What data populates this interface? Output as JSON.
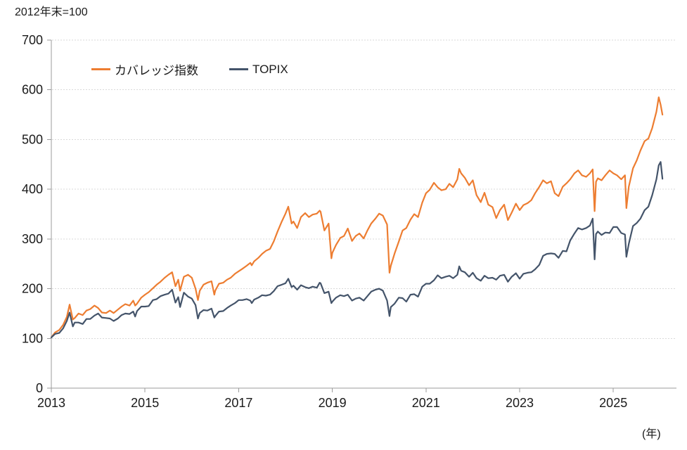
{
  "note": "2012年末=100",
  "unit_label": "(年)",
  "colors": {
    "coverage_index_line": "#ED7D31",
    "topix_line": "#44546A",
    "gridline": "#D9D9D9",
    "axis": "#9B9B9B",
    "label_text": "#1A1A1A"
  },
  "chart_data": {
    "type": "line",
    "title": "2012年末=100",
    "xlabel": "(年)",
    "ylabel": "",
    "ylim": [
      0,
      700
    ],
    "xlim": [
      2013,
      2026.3
    ],
    "grid": true,
    "legend_position": "top-inside",
    "y_ticks": [
      0,
      100,
      200,
      300,
      400,
      500,
      600,
      700
    ],
    "x_ticks": [
      2013,
      2015,
      2017,
      2019,
      2021,
      2023,
      2025
    ],
    "grid_color": "#D9D9D9",
    "axis_color": "#9B9B9B",
    "label_color": "#1A1A1A",
    "x": [
      2013.0,
      2013.08,
      2013.17,
      2013.25,
      2013.33,
      2013.39,
      2013.46,
      2013.5,
      2013.58,
      2013.67,
      2013.75,
      2013.83,
      2013.92,
      2014.0,
      2014.08,
      2014.17,
      2014.25,
      2014.33,
      2014.42,
      2014.5,
      2014.58,
      2014.67,
      2014.75,
      2014.79,
      2014.83,
      2014.92,
      2015.0,
      2015.08,
      2015.17,
      2015.25,
      2015.33,
      2015.42,
      2015.5,
      2015.58,
      2015.65,
      2015.71,
      2015.75,
      2015.83,
      2015.92,
      2016.0,
      2016.08,
      2016.13,
      2016.17,
      2016.25,
      2016.33,
      2016.42,
      2016.48,
      2016.5,
      2016.58,
      2016.67,
      2016.75,
      2016.83,
      2016.92,
      2017.0,
      2017.08,
      2017.17,
      2017.25,
      2017.28,
      2017.33,
      2017.42,
      2017.5,
      2017.58,
      2017.67,
      2017.75,
      2017.83,
      2017.92,
      2018.0,
      2018.06,
      2018.13,
      2018.17,
      2018.25,
      2018.33,
      2018.42,
      2018.5,
      2018.58,
      2018.67,
      2018.73,
      2018.75,
      2018.83,
      2018.92,
      2018.98,
      2019.0,
      2019.08,
      2019.17,
      2019.25,
      2019.33,
      2019.42,
      2019.5,
      2019.58,
      2019.67,
      2019.75,
      2019.83,
      2019.92,
      2020.0,
      2020.08,
      2020.17,
      2020.22,
      2020.25,
      2020.33,
      2020.42,
      2020.5,
      2020.58,
      2020.67,
      2020.75,
      2020.83,
      2020.92,
      2021.0,
      2021.08,
      2021.17,
      2021.25,
      2021.33,
      2021.42,
      2021.5,
      2021.58,
      2021.67,
      2021.71,
      2021.75,
      2021.83,
      2021.92,
      2022.0,
      2022.08,
      2022.17,
      2022.25,
      2022.33,
      2022.42,
      2022.5,
      2022.58,
      2022.67,
      2022.75,
      2022.83,
      2022.92,
      2023.0,
      2023.08,
      2023.17,
      2023.25,
      2023.33,
      2023.42,
      2023.5,
      2023.58,
      2023.67,
      2023.75,
      2023.83,
      2023.92,
      2024.0,
      2024.08,
      2024.17,
      2024.25,
      2024.33,
      2024.42,
      2024.5,
      2024.56,
      2024.6,
      2024.63,
      2024.67,
      2024.75,
      2024.83,
      2024.92,
      2025.0,
      2025.08,
      2025.17,
      2025.25,
      2025.28,
      2025.33,
      2025.42,
      2025.5,
      2025.58,
      2025.67,
      2025.75,
      2025.83,
      2025.92,
      2025.97,
      2026.01,
      2026.05
    ],
    "series": [
      {
        "id": "coverage-index",
        "name": "カバレッジ指数",
        "color": "#ED7D31",
        "values": [
          102,
          112,
          117,
          127,
          143,
          168,
          138,
          141,
          150,
          147,
          156,
          159,
          166,
          161,
          152,
          151,
          156,
          151,
          158,
          164,
          169,
          166,
          176,
          166,
          170,
          182,
          188,
          193,
          201,
          208,
          214,
          222,
          228,
          233,
          205,
          218,
          196,
          224,
          228,
          222,
          200,
          177,
          196,
          208,
          212,
          215,
          188,
          196,
          210,
          212,
          218,
          222,
          230,
          235,
          240,
          246,
          252,
          247,
          255,
          262,
          270,
          276,
          280,
          295,
          315,
          335,
          351,
          365,
          331,
          335,
          322,
          344,
          352,
          344,
          349,
          351,
          357,
          355,
          317,
          331,
          261,
          272,
          288,
          302,
          306,
          321,
          296,
          306,
          311,
          301,
          317,
          331,
          341,
          351,
          347,
          329,
          232,
          246,
          271,
          295,
          317,
          322,
          339,
          350,
          344,
          373,
          392,
          399,
          413,
          404,
          398,
          400,
          411,
          404,
          420,
          441,
          432,
          423,
          408,
          418,
          388,
          374,
          393,
          369,
          364,
          342,
          358,
          369,
          338,
          353,
          371,
          358,
          368,
          372,
          378,
          392,
          405,
          418,
          412,
          416,
          392,
          386,
          405,
          412,
          420,
          432,
          438,
          428,
          425,
          432,
          440,
          356,
          415,
          422,
          418,
          428,
          438,
          432,
          428,
          420,
          428,
          362,
          405,
          442,
          458,
          478,
          497,
          502,
          523,
          556,
          585,
          570,
          550
        ]
      },
      {
        "id": "topix",
        "name": "TOPIX",
        "color": "#44546A",
        "values": [
          102,
          109,
          111,
          120,
          135,
          152,
          124,
          132,
          132,
          129,
          139,
          139,
          146,
          150,
          142,
          141,
          140,
          135,
          140,
          147,
          150,
          149,
          154,
          144,
          155,
          164,
          164,
          165,
          177,
          179,
          185,
          188,
          190,
          198,
          172,
          183,
          163,
          192,
          184,
          180,
          167,
          140,
          151,
          157,
          156,
          160,
          142,
          145,
          154,
          155,
          161,
          166,
          171,
          177,
          177,
          179,
          176,
          171,
          178,
          182,
          187,
          186,
          188,
          195,
          205,
          208,
          211,
          220,
          203,
          206,
          198,
          207,
          203,
          201,
          204,
          202,
          212,
          211,
          191,
          194,
          171,
          174,
          182,
          187,
          185,
          188,
          176,
          180,
          182,
          176,
          185,
          194,
          198,
          200,
          196,
          176,
          145,
          163,
          170,
          182,
          181,
          174,
          188,
          189,
          184,
          204,
          210,
          210,
          217,
          227,
          221,
          224,
          226,
          221,
          228,
          245,
          236,
          233,
          224,
          232,
          221,
          216,
          226,
          221,
          222,
          218,
          226,
          228,
          214,
          224,
          231,
          220,
          230,
          232,
          233,
          239,
          248,
          266,
          270,
          271,
          270,
          262,
          276,
          275,
          297,
          311,
          322,
          319,
          322,
          327,
          341,
          259,
          310,
          315,
          308,
          313,
          312,
          324,
          324,
          312,
          309,
          264,
          290,
          326,
          332,
          341,
          358,
          365,
          388,
          420,
          448,
          455,
          421
        ]
      }
    ]
  }
}
